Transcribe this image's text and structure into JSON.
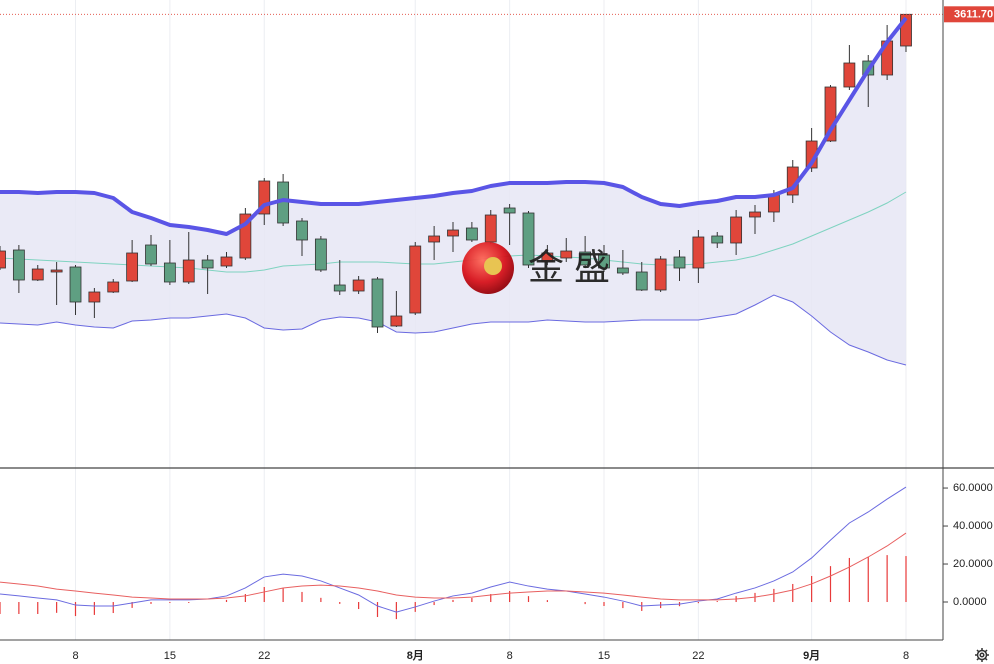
{
  "chart_data": [
    {
      "type": "candlestick",
      "categories": [
        null,
        null,
        null,
        null,
        "8",
        null,
        null,
        null,
        null,
        "15",
        null,
        null,
        null,
        null,
        "22",
        null,
        null,
        null,
        null,
        null,
        null,
        null,
        "8月",
        null,
        null,
        null,
        null,
        "8",
        null,
        null,
        null,
        null,
        "15",
        null,
        null,
        null,
        null,
        "22",
        null,
        null,
        null,
        null,
        null,
        "9月",
        null,
        null,
        null,
        null,
        "8"
      ],
      "open": [
        3358,
        3376,
        3346,
        3354,
        3359,
        3324,
        3334,
        3345,
        3381,
        3363,
        3344,
        3366,
        3360,
        3368,
        3412,
        3444,
        3405,
        3387,
        3341,
        3335,
        3347,
        3300,
        3313,
        3384,
        3390,
        3398,
        3384,
        3418,
        3413,
        3364,
        3368,
        3374,
        3371,
        3358,
        3354,
        3336,
        3369,
        3358,
        3390,
        3383,
        3409,
        3414,
        3431,
        3458,
        3485,
        3539,
        3565,
        3551,
        3580
      ],
      "high": [
        3380,
        3381,
        3361,
        3364,
        3361,
        3338,
        3347,
        3386,
        3391,
        3386,
        3394,
        3371,
        3374,
        3418,
        3448,
        3452,
        3408,
        3390,
        3366,
        3350,
        3349,
        3335,
        3384,
        3400,
        3404,
        3404,
        3416,
        3422,
        3415,
        3381,
        3388,
        3390,
        3381,
        3376,
        3364,
        3370,
        3376,
        3396,
        3394,
        3416,
        3421,
        3436,
        3466,
        3498,
        3541,
        3581,
        3571,
        3601,
        3611.7
      ],
      "low": [
        3356,
        3333,
        3345,
        3321,
        3311,
        3308,
        3333,
        3344,
        3360,
        3341,
        3342,
        3332,
        3358,
        3366,
        3401,
        3400,
        3370,
        3354,
        3331,
        3332,
        3293,
        3299,
        3311,
        3366,
        3374,
        3384,
        3382,
        3381,
        3358,
        3361,
        3364,
        3358,
        3354,
        3351,
        3335,
        3334,
        3345,
        3343,
        3378,
        3371,
        3392,
        3404,
        3423,
        3454,
        3484,
        3536,
        3519,
        3546,
        3574
      ],
      "close": [
        3375,
        3346,
        3357,
        3356,
        3324,
        3334,
        3344,
        3373,
        3362,
        3344,
        3366,
        3358,
        3369,
        3412,
        3445,
        3403,
        3386,
        3356,
        3335,
        3346,
        3299,
        3310,
        3380,
        3390,
        3396,
        3386,
        3411,
        3413,
        3361,
        3373,
        3375,
        3361,
        3358,
        3353,
        3336,
        3367,
        3358,
        3389,
        3383,
        3409,
        3414,
        3431,
        3459,
        3485,
        3539,
        3563,
        3551,
        3585,
        3611.7
      ],
      "up_color": "#e0463a",
      "down_color": "#5f9f82",
      "bollinger": {
        "upper": [
          3434,
          3434,
          3433,
          3434,
          3434,
          3433,
          3428,
          3414,
          3408,
          3401,
          3399,
          3396,
          3392,
          3402,
          3421,
          3426,
          3424,
          3422,
          3422,
          3422,
          3424,
          3426,
          3428,
          3430,
          3433,
          3435,
          3440,
          3443,
          3443,
          3443,
          3444,
          3444,
          3443,
          3439,
          3429,
          3422,
          3420,
          3423,
          3425,
          3429,
          3429,
          3431,
          3438,
          3463,
          3496,
          3526,
          3556,
          3584,
          3608
        ],
        "middle": [
          3368,
          3367,
          3366,
          3365,
          3364,
          3363,
          3362,
          3361,
          3360,
          3359,
          3358,
          3356,
          3354,
          3354,
          3356,
          3360,
          3361,
          3362,
          3364,
          3364,
          3364,
          3363,
          3362,
          3362,
          3364,
          3366,
          3368,
          3370,
          3371,
          3370,
          3369,
          3368,
          3366,
          3364,
          3362,
          3361,
          3361,
          3362,
          3364,
          3366,
          3370,
          3376,
          3382,
          3390,
          3398,
          3406,
          3414,
          3423,
          3434
        ],
        "lower": [
          3303,
          3302,
          3301,
          3304,
          3301,
          3299,
          3298,
          3305,
          3306,
          3308,
          3308,
          3310,
          3312,
          3308,
          3298,
          3296,
          3297,
          3306,
          3309,
          3308,
          3304,
          3294,
          3293,
          3294,
          3298,
          3302,
          3304,
          3304,
          3304,
          3306,
          3305,
          3304,
          3304,
          3305,
          3306,
          3306,
          3306,
          3306,
          3309,
          3312,
          3321,
          3331,
          3324,
          3310,
          3294,
          3281,
          3274,
          3266,
          3261
        ],
        "upper_color": "#5a55e6",
        "middle_color": "#7fd3c0",
        "lower_color": "#6a6ae0",
        "fill_color": "#e6e6f4"
      },
      "ylim": [
        3158,
        3626
      ],
      "last_price": {
        "value": 3611.7,
        "label": "3611.70"
      },
      "watermark": "金 盛"
    },
    {
      "type": "macd",
      "series": [
        {
          "color": "#6b6be0",
          "values": [
            4.2,
            3.2,
            2.1,
            1.1,
            -1.6,
            -2.1,
            -2.1,
            -0.5,
            1.1,
            1.1,
            1.1,
            1.6,
            3.2,
            7.4,
            13.2,
            14.7,
            13.7,
            11.1,
            7.4,
            3.7,
            -2.1,
            -5.3,
            -2.6,
            0.5,
            3.2,
            4.7,
            7.9,
            10.5,
            8.4,
            6.8,
            5.8,
            4.2,
            2.6,
            0.5,
            -2.1,
            -1.6,
            -1.1,
            0.5,
            1.6,
            4.7,
            7.4,
            11.1,
            15.8,
            23.2,
            32.6,
            41.6,
            47.4,
            54.2,
            60.5
          ]
        },
        {
          "color": "#e86060",
          "values": [
            10.5,
            9.5,
            8.4,
            6.8,
            5.8,
            4.7,
            3.7,
            2.6,
            2.1,
            1.6,
            1.6,
            1.6,
            2.1,
            3.2,
            5.3,
            7.4,
            8.4,
            8.9,
            8.4,
            7.4,
            5.8,
            3.7,
            2.6,
            2.1,
            2.1,
            2.6,
            3.7,
            4.7,
            5.3,
            5.8,
            5.8,
            5.3,
            4.7,
            3.7,
            2.6,
            1.6,
            1.1,
            1.1,
            1.1,
            1.6,
            2.6,
            4.2,
            6.3,
            9.5,
            13.7,
            18.4,
            23.7,
            29.5,
            36.3
          ]
        }
      ],
      "histogram": {
        "color": "#e83a3a",
        "values": [
          -6.3,
          -6.3,
          -6.3,
          -5.7,
          -7.4,
          -6.8,
          -5.8,
          -3.1,
          -1.0,
          -0.5,
          -0.5,
          0,
          1.1,
          4.2,
          7.9,
          7.3,
          5.3,
          2.2,
          -1.0,
          -3.7,
          -7.9,
          -9.0,
          -5.2,
          -1.6,
          1.1,
          2.1,
          4.2,
          5.8,
          3.1,
          1.0,
          0,
          -1.1,
          -2.1,
          -3.2,
          -4.7,
          -3.2,
          -2.2,
          -0.6,
          0.5,
          3.1,
          4.8,
          6.9,
          9.5,
          13.7,
          18.9,
          23.2,
          23.7,
          24.7,
          24.2
        ]
      },
      "ylim": [
        -20,
        69.5
      ],
      "yticks": [
        {
          "value": 0,
          "label": "0.0000"
        },
        {
          "value": 20,
          "label": "20.0000"
        },
        {
          "value": 40,
          "label": "40.0000"
        },
        {
          "value": 60,
          "label": "60.0000"
        }
      ]
    }
  ]
}
